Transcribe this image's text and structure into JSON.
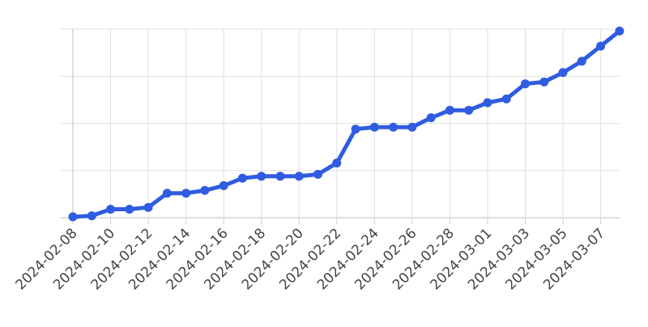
{
  "chart_data": {
    "type": "line",
    "title": "",
    "xlabel": "",
    "ylabel": "",
    "ylim": [
      0,
      100
    ],
    "grid": true,
    "legend": "none",
    "y_tick_labels_shown": false,
    "x_tick_labels": [
      "2024-02-08",
      "2024-02-10",
      "2024-02-12",
      "2024-02-14",
      "2024-02-16",
      "2024-02-18",
      "2024-02-20",
      "2024-02-22",
      "2024-02-24",
      "2024-02-26",
      "2024-02-28",
      "2024-03-01",
      "2024-03-03",
      "2024-03-05",
      "2024-03-07"
    ],
    "x": [
      "2024-02-08",
      "2024-02-09",
      "2024-02-10",
      "2024-02-11",
      "2024-02-12",
      "2024-02-13",
      "2024-02-14",
      "2024-02-15",
      "2024-02-16",
      "2024-02-17",
      "2024-02-18",
      "2024-02-19",
      "2024-02-20",
      "2024-02-21",
      "2024-02-22",
      "2024-02-23",
      "2024-02-24",
      "2024-02-25",
      "2024-02-26",
      "2024-02-27",
      "2024-02-28",
      "2024-02-29",
      "2024-03-01",
      "2024-03-02",
      "2024-03-03",
      "2024-03-04",
      "2024-03-05",
      "2024-03-06",
      "2024-03-07",
      "2024-03-08"
    ],
    "series": [
      {
        "color": "#2f5ce0",
        "values": [
          0.5,
          1,
          4.5,
          4.5,
          5.5,
          13,
          13,
          14.5,
          17,
          21,
          22,
          22,
          22,
          23,
          29,
          47,
          48,
          48,
          48,
          53,
          57,
          57,
          61,
          63,
          71,
          72,
          77,
          83,
          91,
          99
        ]
      }
    ]
  }
}
